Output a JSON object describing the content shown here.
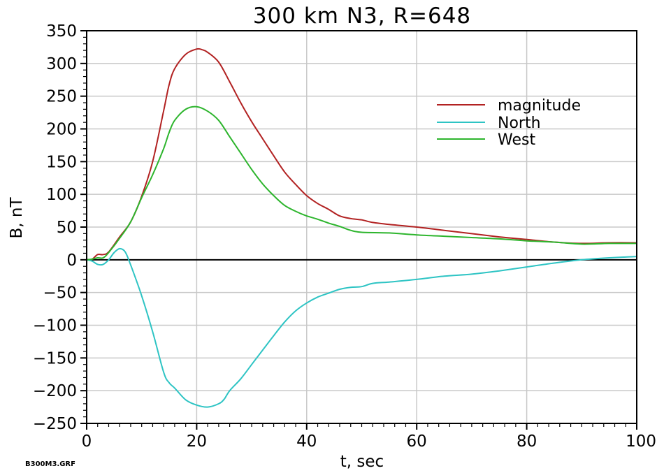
{
  "file_label": "B300M3.GRF",
  "chart_data": {
    "type": "line",
    "title": "300 km N3, R=648",
    "xlabel": "t, sec",
    "ylabel": "B, nT",
    "xlim": [
      0,
      100
    ],
    "ylim": [
      -250,
      350
    ],
    "xticks": [
      0,
      20,
      40,
      60,
      80,
      100
    ],
    "yticks": [
      -250,
      -200,
      -150,
      -100,
      -50,
      0,
      50,
      100,
      150,
      200,
      250,
      300,
      350
    ],
    "grid": true,
    "legend_position": "top-right",
    "series": [
      {
        "name": "magnitude",
        "color": "#b22222",
        "x": [
          0,
          1,
          2,
          3,
          4,
          6,
          8,
          10,
          12,
          14,
          15,
          16,
          18,
          20,
          21,
          22,
          24,
          26,
          28,
          30,
          32,
          34,
          36,
          38,
          40,
          42,
          44,
          46,
          48,
          50,
          52,
          55,
          60,
          65,
          70,
          75,
          80,
          85,
          90,
          95,
          100
        ],
        "y": [
          0,
          1,
          8,
          8,
          12,
          35,
          58,
          97,
          150,
          228,
          268,
          292,
          314,
          322,
          321,
          317,
          302,
          272,
          240,
          211,
          185,
          159,
          134,
          115,
          98,
          86,
          77,
          67,
          63,
          61,
          57,
          54,
          50,
          45,
          40,
          35,
          31,
          27,
          25,
          26,
          26
        ]
      },
      {
        "name": "North",
        "color": "#2ec4c4",
        "x": [
          0,
          1,
          2,
          3,
          4,
          5,
          6,
          7,
          8,
          10,
          12,
          14,
          15,
          16,
          18,
          20,
          22,
          24,
          25,
          26,
          28,
          30,
          32,
          34,
          36,
          38,
          40,
          42,
          44,
          46,
          48,
          50,
          52,
          55,
          60,
          65,
          70,
          75,
          80,
          85,
          90,
          95,
          100
        ],
        "y": [
          0,
          -2,
          -7,
          -7,
          0,
          11,
          17,
          12,
          -8,
          -55,
          -110,
          -172,
          -188,
          -196,
          -214,
          -222,
          -225,
          -220,
          -213,
          -200,
          -182,
          -160,
          -138,
          -116,
          -95,
          -78,
          -66,
          -57,
          -51,
          -45,
          -42,
          -41,
          -36,
          -34,
          -30,
          -25,
          -22,
          -17,
          -11,
          -5,
          0,
          3,
          5
        ]
      },
      {
        "name": "West",
        "color": "#2db52d",
        "x": [
          0,
          1,
          2,
          3,
          4,
          6,
          8,
          10,
          12,
          14,
          15,
          16,
          18,
          20,
          22,
          24,
          26,
          28,
          30,
          32,
          34,
          36,
          38,
          40,
          42,
          44,
          46,
          48,
          50,
          55,
          60,
          65,
          70,
          75,
          80,
          85,
          90,
          95,
          100
        ],
        "y": [
          0,
          1,
          3,
          3,
          11,
          33,
          58,
          95,
          130,
          170,
          195,
          213,
          230,
          234,
          227,
          213,
          188,
          163,
          138,
          116,
          98,
          83,
          74,
          67,
          62,
          56,
          51,
          45,
          42,
          41,
          38,
          36,
          34,
          32,
          29,
          27,
          24,
          25,
          25
        ]
      }
    ]
  }
}
